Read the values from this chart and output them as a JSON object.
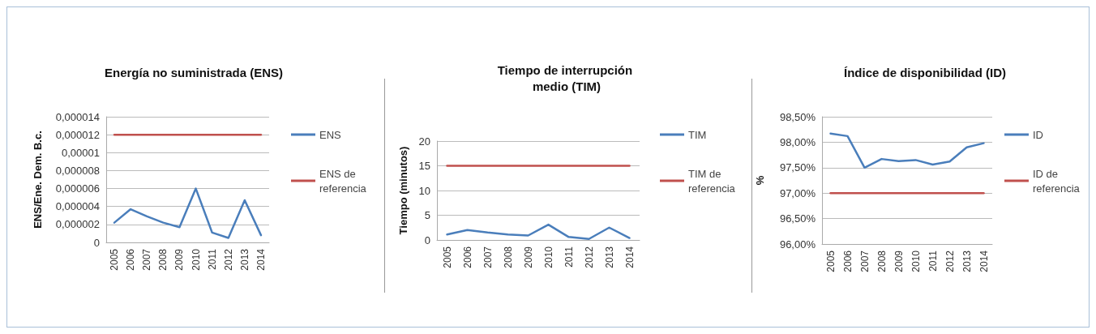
{
  "chart_data": [
    {
      "type": "line",
      "title": "Energía no suministrada (ENS)",
      "ylabel": "ENS/Ene. Dem. B.c.",
      "categories": [
        "2005",
        "2006",
        "2007",
        "2008",
        "2009",
        "2010",
        "2011",
        "2012",
        "2013",
        "2014"
      ],
      "series": [
        {
          "name": "ENS",
          "color": "#4a7ebb",
          "values": [
            2.2e-06,
            3.7e-06,
            2.9e-06,
            2.2e-06,
            1.7e-06,
            6e-06,
            1.1e-06,
            5e-07,
            4.7e-06,
            8e-07
          ]
        },
        {
          "name": "ENS de referencia",
          "color": "#c0504d",
          "values": [
            1.2e-05,
            1.2e-05,
            1.2e-05,
            1.2e-05,
            1.2e-05,
            1.2e-05,
            1.2e-05,
            1.2e-05,
            1.2e-05,
            1.2e-05
          ]
        }
      ],
      "ylim": [
        0,
        1.4e-05
      ],
      "yticks": [
        0,
        {
          "value": 2e-06,
          "label": "0,000002"
        },
        {
          "value": 4e-06,
          "label": "0,000004"
        },
        {
          "value": 6e-06,
          "label": "0,000006"
        },
        {
          "value": 8e-06,
          "label": "0,000008"
        },
        {
          "value": 1e-05,
          "label": "0,00001"
        },
        {
          "value": 1.2e-05,
          "label": "0,000012"
        },
        {
          "value": 1.4e-05,
          "label": "0,000014"
        }
      ],
      "grid": "y",
      "legend": "right",
      "marker": "none",
      "line_style": "solid"
    },
    {
      "type": "line",
      "title": "Tiempo de interrupción medio (TIM)",
      "ylabel": "Tiempo (minutos)",
      "categories": [
        "2005",
        "2006",
        "2007",
        "2008",
        "2009",
        "2010",
        "2011",
        "2012",
        "2013",
        "2014"
      ],
      "series": [
        {
          "name": "TIM",
          "color": "#4a7ebb",
          "values": [
            1.1,
            2.0,
            1.5,
            1.1,
            0.9,
            3.1,
            0.6,
            0.2,
            2.5,
            0.4
          ]
        },
        {
          "name": "TIM de referencia",
          "color": "#c0504d",
          "values": [
            15,
            15,
            15,
            15,
            15,
            15,
            15,
            15,
            15,
            15
          ]
        }
      ],
      "ylim": [
        0,
        20
      ],
      "yticks": [
        0,
        5,
        10,
        15,
        20
      ],
      "grid": "y",
      "legend": "right",
      "marker": "none",
      "line_style": "solid"
    },
    {
      "type": "line",
      "title": "Índice de disponibilidad (ID)",
      "ylabel": "%",
      "categories": [
        "2005",
        "2006",
        "2007",
        "2008",
        "2009",
        "2010",
        "2011",
        "2012",
        "2013",
        "2014"
      ],
      "series": [
        {
          "name": "ID",
          "color": "#4a7ebb",
          "values": [
            98.17,
            98.12,
            97.5,
            97.67,
            97.63,
            97.65,
            97.56,
            97.62,
            97.9,
            97.98
          ]
        },
        {
          "name": "ID de referencia",
          "color": "#c0504d",
          "values": [
            97,
            97,
            97,
            97,
            97,
            97,
            97,
            97,
            97,
            97
          ]
        }
      ],
      "ylim": [
        96,
        98.5
      ],
      "yticks": [
        {
          "value": 96,
          "label": "96,00%"
        },
        {
          "value": 96.5,
          "label": "96,50%"
        },
        {
          "value": 97,
          "label": "97,00%"
        },
        {
          "value": 97.5,
          "label": "97,50%"
        },
        {
          "value": 98,
          "label": "98,00%"
        },
        {
          "value": 98.5,
          "label": "98,50%"
        }
      ],
      "grid": "y",
      "legend": "right",
      "marker": "none",
      "line_style": "solid"
    }
  ]
}
